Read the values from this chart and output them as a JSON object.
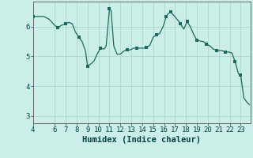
{
  "title": "",
  "xlabel": "Humidex (Indice chaleur)",
  "ylabel": "",
  "background_color": "#cceee8",
  "line_color": "#1a6b5a",
  "marker_color": "#1a6b5a",
  "grid_color": "#aad8d0",
  "axis_color": "#666666",
  "tick_color": "#004444",
  "xlim": [
    4,
    23.9
  ],
  "ylim": [
    2.75,
    6.85
  ],
  "yticks": [
    3,
    4,
    5,
    6
  ],
  "xticks": [
    4,
    6,
    7,
    8,
    9,
    10,
    11,
    12,
    13,
    14,
    15,
    16,
    17,
    18,
    19,
    20,
    21,
    22,
    23
  ],
  "x": [
    4.0,
    4.5,
    5.0,
    5.5,
    6.0,
    6.3,
    6.6,
    7.0,
    7.3,
    7.6,
    7.9,
    8.2,
    8.5,
    8.8,
    9.0,
    9.3,
    9.6,
    9.9,
    10.2,
    10.5,
    10.7,
    11.0,
    11.15,
    11.4,
    11.7,
    12.0,
    12.3,
    12.6,
    12.9,
    13.2,
    13.5,
    13.8,
    14.1,
    14.4,
    14.7,
    15.0,
    15.3,
    15.6,
    15.9,
    16.2,
    16.4,
    16.6,
    16.9,
    17.2,
    17.5,
    17.8,
    18.1,
    18.4,
    18.7,
    19.0,
    19.3,
    19.6,
    19.9,
    20.2,
    20.5,
    20.8,
    21.0,
    21.3,
    21.6,
    21.9,
    22.2,
    22.5,
    22.8,
    23.0,
    23.3,
    23.6,
    23.8
  ],
  "y": [
    6.35,
    6.35,
    6.35,
    6.25,
    6.05,
    5.97,
    6.05,
    6.1,
    6.15,
    6.1,
    5.82,
    5.65,
    5.5,
    5.2,
    4.68,
    4.75,
    4.85,
    5.1,
    5.28,
    5.25,
    5.35,
    6.6,
    6.55,
    5.35,
    5.08,
    5.08,
    5.18,
    5.22,
    5.22,
    5.28,
    5.28,
    5.28,
    5.28,
    5.3,
    5.38,
    5.65,
    5.72,
    5.78,
    6.0,
    6.35,
    6.45,
    6.5,
    6.38,
    6.25,
    6.1,
    5.92,
    6.18,
    6.0,
    5.75,
    5.55,
    5.52,
    5.5,
    5.42,
    5.35,
    5.25,
    5.2,
    5.2,
    5.2,
    5.15,
    5.15,
    5.12,
    4.82,
    4.42,
    4.38,
    3.6,
    3.45,
    3.38
  ],
  "marker_x": [
    4.0,
    6.3,
    7.0,
    8.2,
    9.0,
    10.2,
    11.0,
    12.6,
    13.5,
    14.4,
    15.3,
    16.2,
    16.6,
    17.5,
    18.1,
    19.0,
    19.9,
    20.8,
    21.6,
    22.5,
    23.0
  ],
  "marker_y": [
    6.35,
    5.97,
    6.1,
    5.65,
    4.68,
    5.28,
    6.6,
    5.22,
    5.28,
    5.3,
    5.72,
    6.35,
    6.5,
    6.1,
    6.18,
    5.55,
    5.42,
    5.2,
    5.15,
    4.82,
    4.38
  ],
  "font_family": "monospace",
  "label_fontsize": 7.5,
  "tick_fontsize": 6.5
}
